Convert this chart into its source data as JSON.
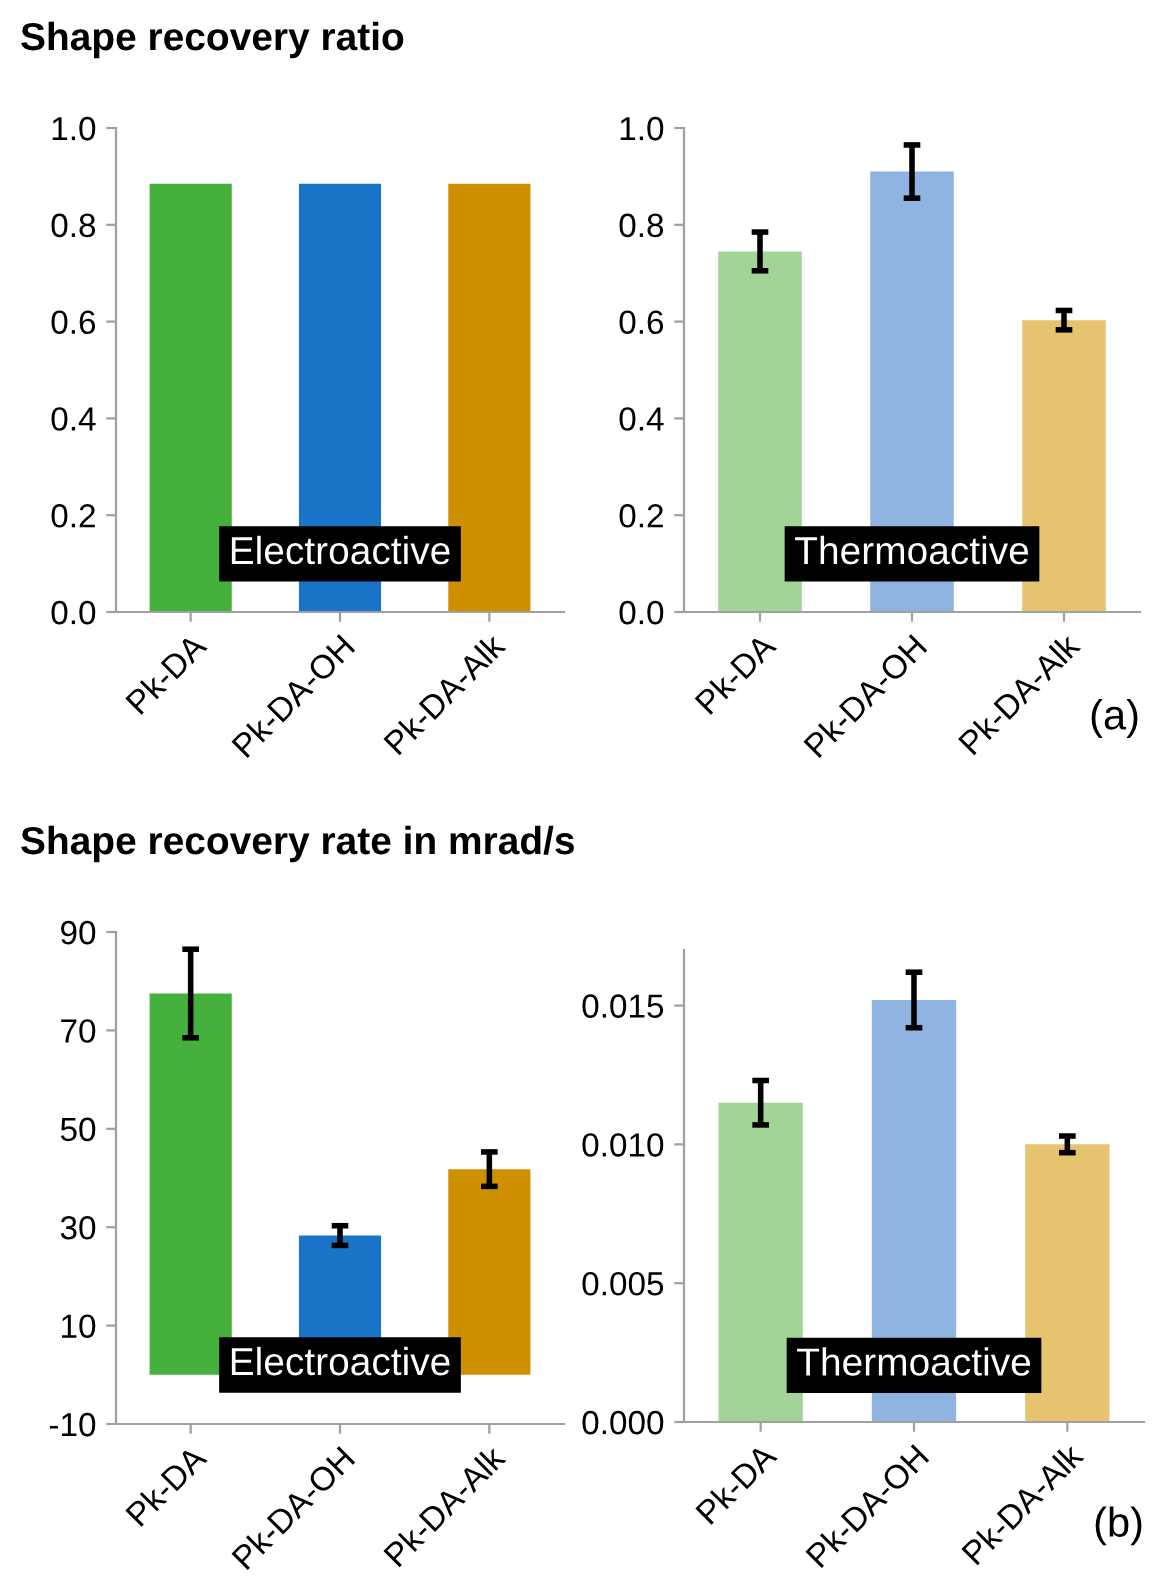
{
  "chart_data": [
    {
      "type": "bar",
      "title": "Shape recovery ratio",
      "categories": [
        "Pk-DA",
        "Pk-DA-OH",
        "Pk-DA-Alk"
      ],
      "values": [
        0.885,
        0.885,
        0.885
      ],
      "colors": [
        "#46b03c",
        "#1a75c9",
        "#cf9000"
      ],
      "ylim": [
        0,
        1.0
      ],
      "yticks": [
        {
          "value": 0,
          "label": "0.0"
        },
        0.2,
        0.4,
        0.6,
        0.8,
        {
          "value": 1.0,
          "label": "1.0"
        }
      ],
      "grid": false,
      "annotations": [
        "Electroactive"
      ]
    },
    {
      "type": "bar",
      "categories": [
        "Pk-DA",
        "Pk-DA-OH",
        "Pk-DA-Alk"
      ],
      "values": [
        0.745,
        0.91,
        0.603
      ],
      "errors": [
        0.04,
        0.055,
        0.02
      ],
      "colors": [
        "#a3d497",
        "#8fb4e2",
        "#e6c36f"
      ],
      "ylim": [
        0,
        1.0
      ],
      "yticks": [
        {
          "value": 0,
          "label": "0.0"
        },
        0.2,
        0.4,
        0.6,
        0.8,
        {
          "value": 1.0,
          "label": "1.0"
        }
      ],
      "grid": false,
      "annotations": [
        "Thermoactive",
        "(a)"
      ]
    },
    {
      "type": "bar",
      "title": "Shape recovery rate in mrad/s",
      "categories": [
        "Pk-DA",
        "Pk-DA-OH",
        "Pk-DA-Alk"
      ],
      "values": [
        77.5,
        28.3,
        41.8
      ],
      "errors": [
        9,
        2,
        3.5
      ],
      "colors": [
        "#46b03c",
        "#1a75c9",
        "#cf9000"
      ],
      "ylim": [
        -10,
        90
      ],
      "yticks": [
        {
          "value": -10,
          "label": "-10"
        },
        10,
        30,
        50,
        70,
        90
      ],
      "grid": false,
      "annotations": [
        "Electroactive"
      ]
    },
    {
      "type": "bar",
      "categories": [
        "Pk-DA",
        "Pk-DA-OH",
        "Pk-DA-Alk"
      ],
      "values": [
        0.0115,
        0.0152,
        0.01
      ],
      "errors": [
        0.0008,
        0.001,
        0.0003
      ],
      "colors": [
        "#a3d497",
        "#8fb4e2",
        "#e6c36f"
      ],
      "ylim": [
        0,
        0.017
      ],
      "yticks": [
        {
          "value": 0,
          "label": "0.000"
        },
        {
          "value": 0.005,
          "label": "0.005"
        },
        {
          "value": 0.01,
          "label": "0.010"
        },
        {
          "value": 0.015,
          "label": "0.015"
        }
      ],
      "grid": false,
      "annotations": [
        "Thermoactive",
        "(b)"
      ]
    }
  ]
}
